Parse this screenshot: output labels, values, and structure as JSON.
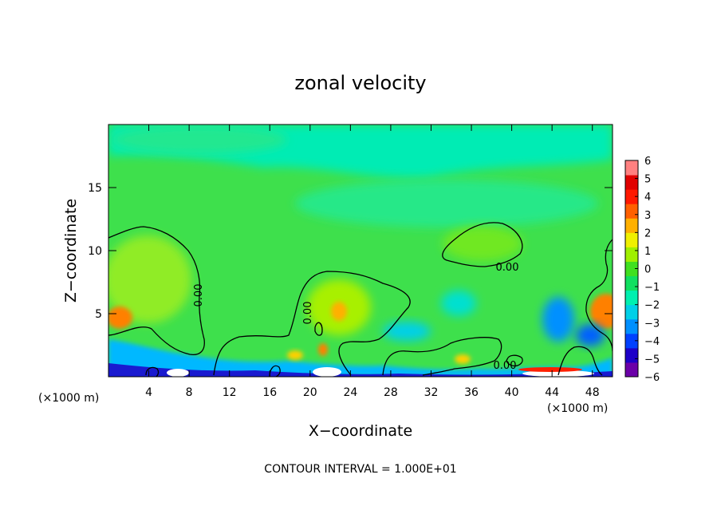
{
  "chart_data": {
    "type": "heatmap",
    "title": "zonal velocity",
    "xlabel": "X−coordinate",
    "ylabel": "Z−coordinate",
    "x_unit_left": "(×1000 m)",
    "x_unit_right": "(×1000 m)",
    "xlim": [
      0,
      50
    ],
    "ylim": [
      0,
      20
    ],
    "x_ticks": [
      4,
      8,
      12,
      16,
      20,
      24,
      28,
      32,
      36,
      40,
      44,
      48
    ],
    "y_ticks": [
      5,
      10,
      15
    ],
    "colorbar": {
      "ticks": [
        "6",
        "5",
        "4",
        "3",
        "2",
        "1",
        "0",
        "−1",
        "−2",
        "−3",
        "−4",
        "−5",
        "−6"
      ],
      "range": [
        -6,
        6
      ],
      "colors": [
        "#6b00a8",
        "#1d00c8",
        "#0040ff",
        "#0090ff",
        "#00d0e8",
        "#00f0b0",
        "#10e060",
        "#40e020",
        "#a0f000",
        "#f0f000",
        "#ffb000",
        "#ff6000",
        "#ff1800",
        "#e00000",
        "#ff8080"
      ]
    },
    "contour_labels": [
      "0.00",
      "0.00",
      "0.00",
      "0.00"
    ],
    "annotation": "CONTOUR INTERVAL = 1.000E+01",
    "grid": false
  }
}
